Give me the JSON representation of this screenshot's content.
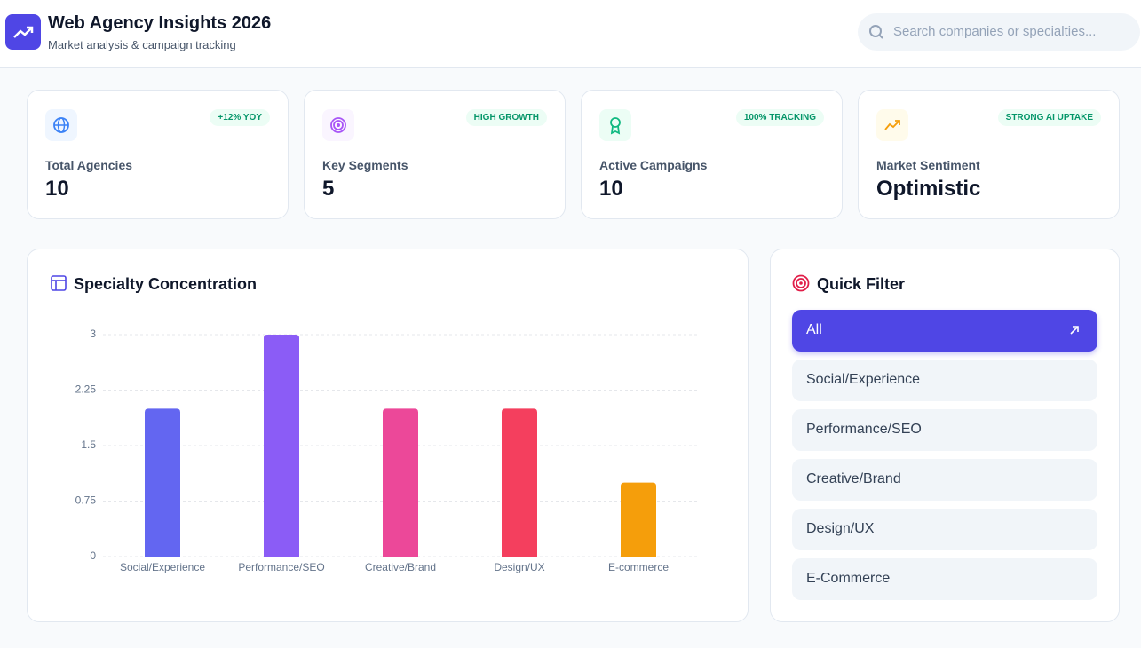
{
  "header": {
    "title": "Web Agency Insights 2026",
    "subtitle": "Market analysis & campaign tracking",
    "search_placeholder": "Search companies or specialties..."
  },
  "stats": [
    {
      "label": "Total Agencies",
      "value": 10,
      "badge": "+12% YOY"
    },
    {
      "label": "Key Segments",
      "value": 5,
      "badge": "HIGH GROWTH"
    },
    {
      "label": "Active Campaigns",
      "value": 10,
      "badge": "100% TRACKING"
    },
    {
      "label": "Market Sentiment",
      "value": "Optimistic",
      "badge": "STRONG AI UPTAKE"
    }
  ],
  "chart_data": {
    "type": "bar",
    "title": "Specialty Concentration",
    "categories": [
      "Social/Experience",
      "Performance/SEO",
      "Creative/Brand",
      "Design/UX",
      "E-commerce"
    ],
    "values": [
      2,
      3,
      2,
      2,
      1
    ],
    "colors": [
      "#6366f1",
      "#8b5cf6",
      "#ec4899",
      "#f43f5e",
      "#f59e0b"
    ],
    "ylim": [
      0,
      3
    ],
    "yticks": [
      0,
      0.75,
      1.5,
      2.25,
      3
    ],
    "grid": true
  },
  "filters": {
    "title": "Quick Filter",
    "options": [
      "All",
      "Social/Experience",
      "Performance/SEO",
      "Creative/Brand",
      "Design/UX",
      "E-Commerce"
    ]
  }
}
